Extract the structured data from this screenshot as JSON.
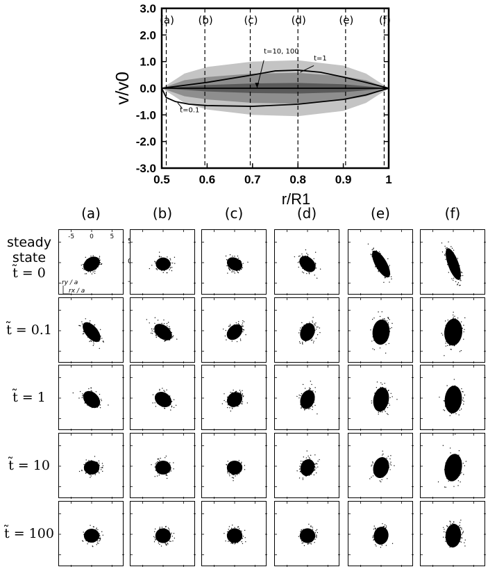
{
  "chart_data": [
    {
      "type": "line",
      "title": "",
      "xlabel": "r/R1",
      "ylabel": "v/v0",
      "xlim": [
        0.5,
        1.0
      ],
      "ylim": [
        -3.0,
        3.0
      ],
      "xticks": [
        "0.5",
        "0.6",
        "0.7",
        "0.8",
        "0.9",
        "1"
      ],
      "yticks": [
        "3.0",
        "2.0",
        "1.0",
        "0.0",
        "-1.0",
        "-2.0",
        "-3.0"
      ],
      "markers": [
        {
          "label": "(a)",
          "x": 0.51
        },
        {
          "label": "(b)",
          "x": 0.595
        },
        {
          "label": "(c)",
          "x": 0.695
        },
        {
          "label": "(d)",
          "x": 0.8
        },
        {
          "label": "(e)",
          "x": 0.905
        },
        {
          "label": "(f)",
          "x": 0.99
        }
      ],
      "bands": [
        {
          "name": "spread t=0.1 (light)",
          "x": [
            0.5,
            0.55,
            0.6,
            0.7,
            0.8,
            0.9,
            0.95,
            1.0
          ],
          "upper": [
            0.0,
            0.55,
            0.8,
            1.0,
            1.05,
            0.85,
            0.55,
            0.0
          ],
          "lower": [
            0.0,
            -0.55,
            -0.8,
            -1.0,
            -1.05,
            -0.85,
            -0.55,
            0.0
          ]
        },
        {
          "name": "spread t=1 (medium)",
          "x": [
            0.5,
            0.55,
            0.6,
            0.7,
            0.8,
            0.9,
            0.95,
            1.0
          ],
          "upper": [
            0.0,
            0.3,
            0.42,
            0.55,
            0.58,
            0.45,
            0.3,
            0.0
          ],
          "lower": [
            0.0,
            -0.3,
            -0.42,
            -0.55,
            -0.58,
            -0.45,
            -0.3,
            0.0
          ]
        },
        {
          "name": "spread t=10 (dark)",
          "x": [
            0.5,
            0.6,
            0.7,
            0.8,
            0.9,
            1.0
          ],
          "upper": [
            0.0,
            0.12,
            0.18,
            0.2,
            0.15,
            0.0
          ],
          "lower": [
            0.0,
            -0.12,
            -0.18,
            -0.2,
            -0.15,
            0.0
          ]
        }
      ],
      "series": [
        {
          "name": "t=0.1",
          "x": [
            0.5,
            0.51,
            0.53,
            0.56,
            0.6,
            0.7,
            0.8,
            0.9,
            0.95,
            1.0
          ],
          "values": [
            0.0,
            -0.35,
            -0.5,
            -0.6,
            -0.65,
            -0.68,
            -0.6,
            -0.42,
            -0.25,
            0.0
          ]
        },
        {
          "name": "t=1",
          "x": [
            0.5,
            0.6,
            0.7,
            0.75,
            0.8,
            0.85,
            0.9,
            0.95,
            1.0
          ],
          "values": [
            0.0,
            0.22,
            0.5,
            0.65,
            0.68,
            0.6,
            0.42,
            0.22,
            0.0
          ]
        },
        {
          "name": "t=10, 100",
          "x": [
            0.5,
            1.0
          ],
          "values": [
            0.0,
            0.0
          ]
        }
      ],
      "annotations": [
        {
          "text": "t=10, 100",
          "x": 0.725,
          "y": 1.3
        },
        {
          "text": "t=1",
          "x": 0.835,
          "y": 1.05
        },
        {
          "text": "t=0.1",
          "x": 0.54,
          "y": -0.9
        }
      ]
    },
    {
      "type": "scatter",
      "description_columns": [
        "(a)",
        "(b)",
        "(c)",
        "(d)",
        "(e)",
        "(f)"
      ],
      "rows": [
        {
          "label_line1": "steady",
          "label_line2": "state",
          "label_math": "t̃ = 0",
          "clouds": [
            {
              "rx": 2.2,
              "ry": 1.6,
              "tilt": -35
            },
            {
              "rx": 1.8,
              "ry": 1.6,
              "tilt": 0
            },
            {
              "rx": 2.0,
              "ry": 1.5,
              "tilt": 30
            },
            {
              "rx": 2.3,
              "ry": 1.6,
              "tilt": 45
            },
            {
              "rx": 3.7,
              "ry": 1.4,
              "tilt": 60
            },
            {
              "rx": 4.1,
              "ry": 1.3,
              "tilt": 70
            }
          ]
        },
        {
          "label_math": "t̃ = 0.1",
          "clouds": [
            {
              "rx": 2.9,
              "ry": 1.5,
              "tilt": 50
            },
            {
              "rx": 2.5,
              "ry": 1.6,
              "tilt": 40
            },
            {
              "rx": 2.2,
              "ry": 1.6,
              "tilt": -45
            },
            {
              "rx": 2.3,
              "ry": 1.7,
              "tilt": -65
            },
            {
              "rx": 3.1,
              "ry": 2.1,
              "tilt": -85
            },
            {
              "rx": 3.3,
              "ry": 2.2,
              "tilt": -85
            }
          ]
        },
        {
          "label_math": "t̃ = 1",
          "clouds": [
            {
              "rx": 2.4,
              "ry": 1.7,
              "tilt": 45
            },
            {
              "rx": 2.2,
              "ry": 1.7,
              "tilt": 35
            },
            {
              "rx": 2.0,
              "ry": 1.7,
              "tilt": -40
            },
            {
              "rx": 2.4,
              "ry": 1.7,
              "tilt": -70
            },
            {
              "rx": 3.0,
              "ry": 1.9,
              "tilt": -80
            },
            {
              "rx": 3.4,
              "ry": 2.1,
              "tilt": -85
            }
          ]
        },
        {
          "label_math": "t̃ = 10",
          "clouds": [
            {
              "rx": 1.9,
              "ry": 1.7,
              "tilt": 0
            },
            {
              "rx": 1.9,
              "ry": 1.7,
              "tilt": 0
            },
            {
              "rx": 1.9,
              "ry": 1.7,
              "tilt": 0
            },
            {
              "rx": 2.1,
              "ry": 1.7,
              "tilt": -70
            },
            {
              "rx": 2.6,
              "ry": 1.9,
              "tilt": -75
            },
            {
              "rx": 3.4,
              "ry": 2.1,
              "tilt": -80
            }
          ]
        },
        {
          "label_math": "t̃ = 100",
          "clouds": [
            {
              "rx": 1.9,
              "ry": 1.7,
              "tilt": 0
            },
            {
              "rx": 1.9,
              "ry": 1.8,
              "tilt": 0
            },
            {
              "rx": 1.9,
              "ry": 1.8,
              "tilt": 0
            },
            {
              "rx": 1.9,
              "ry": 1.8,
              "tilt": 0
            },
            {
              "rx": 2.2,
              "ry": 1.8,
              "tilt": -80
            },
            {
              "rx": 2.9,
              "ry": 1.9,
              "tilt": -85
            }
          ]
        }
      ],
      "inset": {
        "top_ticks": [
          "-5",
          "0",
          "5"
        ],
        "right_ticks": [
          "5",
          "0",
          "-5"
        ],
        "axis_y_label": "ry / a",
        "axis_x_label": "rx / a"
      },
      "axis_range": [
        -8,
        8
      ]
    }
  ]
}
